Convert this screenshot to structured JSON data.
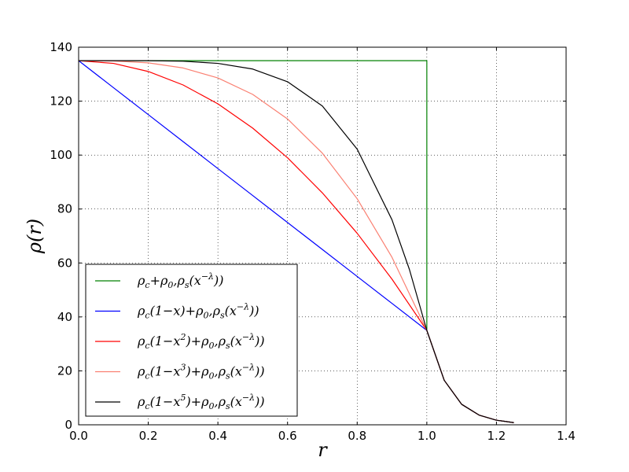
{
  "chart_data": {
    "type": "line",
    "xlabel": "r",
    "ylabel": "ρ(r)",
    "xlim": [
      0.0,
      1.4
    ],
    "ylim": [
      0,
      140
    ],
    "xticks": [
      "0.0",
      "0.2",
      "0.4",
      "0.6",
      "0.8",
      "1.0",
      "1.2",
      "1.4"
    ],
    "yticks": [
      "0",
      "20",
      "40",
      "60",
      "80",
      "100",
      "120",
      "140"
    ],
    "grid": true,
    "legend_position": "bottom-left",
    "series": [
      {
        "name": "ρc+ρ0,ρs(x−λ))",
        "color": "#008000",
        "x": [
          0,
          0.1,
          0.2,
          0.3,
          0.4,
          0.5,
          0.6,
          0.7,
          0.8,
          0.9,
          1.0,
          1.0,
          1.05,
          1.1,
          1.15,
          1.2,
          1.25
        ],
        "y": [
          135,
          135,
          135,
          135,
          135,
          135,
          135,
          135,
          135,
          135,
          135,
          35,
          16.5,
          7.6,
          3.6,
          1.7,
          0.8
        ]
      },
      {
        "name": "ρc(1−x)+ρ0,ρs(x−λ))",
        "color": "#0000ff",
        "x": [
          0,
          0.1,
          0.2,
          0.3,
          0.4,
          0.5,
          0.6,
          0.7,
          0.8,
          0.9,
          1.0,
          1.05,
          1.1,
          1.15,
          1.2,
          1.25
        ],
        "y": [
          135,
          125,
          115,
          105,
          95,
          85,
          75,
          65,
          55,
          45,
          35,
          16.5,
          7.6,
          3.6,
          1.7,
          0.8
        ]
      },
      {
        "name": "ρc(1−x2)+ρ0,ρs(x−λ))",
        "color": "#ff0000",
        "x": [
          0,
          0.1,
          0.2,
          0.3,
          0.4,
          0.5,
          0.6,
          0.7,
          0.8,
          0.9,
          1.0,
          1.05,
          1.1,
          1.15,
          1.2,
          1.25
        ],
        "y": [
          135,
          134,
          131,
          126,
          119,
          110,
          99,
          86,
          71,
          54,
          35,
          16.5,
          7.6,
          3.6,
          1.7,
          0.8
        ]
      },
      {
        "name": "ρc(1−x3)+ρ0,ρs(x−λ))",
        "color": "#fa8072",
        "x": [
          0,
          0.1,
          0.2,
          0.3,
          0.4,
          0.5,
          0.6,
          0.7,
          0.8,
          0.9,
          1.0,
          1.05,
          1.1,
          1.15,
          1.2,
          1.25
        ],
        "y": [
          135,
          134.9,
          134.2,
          132.3,
          128.6,
          122.5,
          113.4,
          100.7,
          83.8,
          62.1,
          35,
          16.5,
          7.6,
          3.6,
          1.7,
          0.8
        ]
      },
      {
        "name": "ρc(1−x5)+ρ0,ρs(x−λ))",
        "color": "#000000",
        "x": [
          0,
          0.1,
          0.2,
          0.3,
          0.4,
          0.5,
          0.6,
          0.7,
          0.8,
          0.9,
          0.95,
          1.0,
          1.05,
          1.1,
          1.15,
          1.2,
          1.25
        ],
        "y": [
          135,
          135,
          135,
          134.8,
          134,
          131.9,
          127.2,
          118.2,
          102.2,
          76,
          57.6,
          35,
          16.5,
          7.6,
          3.6,
          1.7,
          0.8
        ]
      }
    ]
  }
}
